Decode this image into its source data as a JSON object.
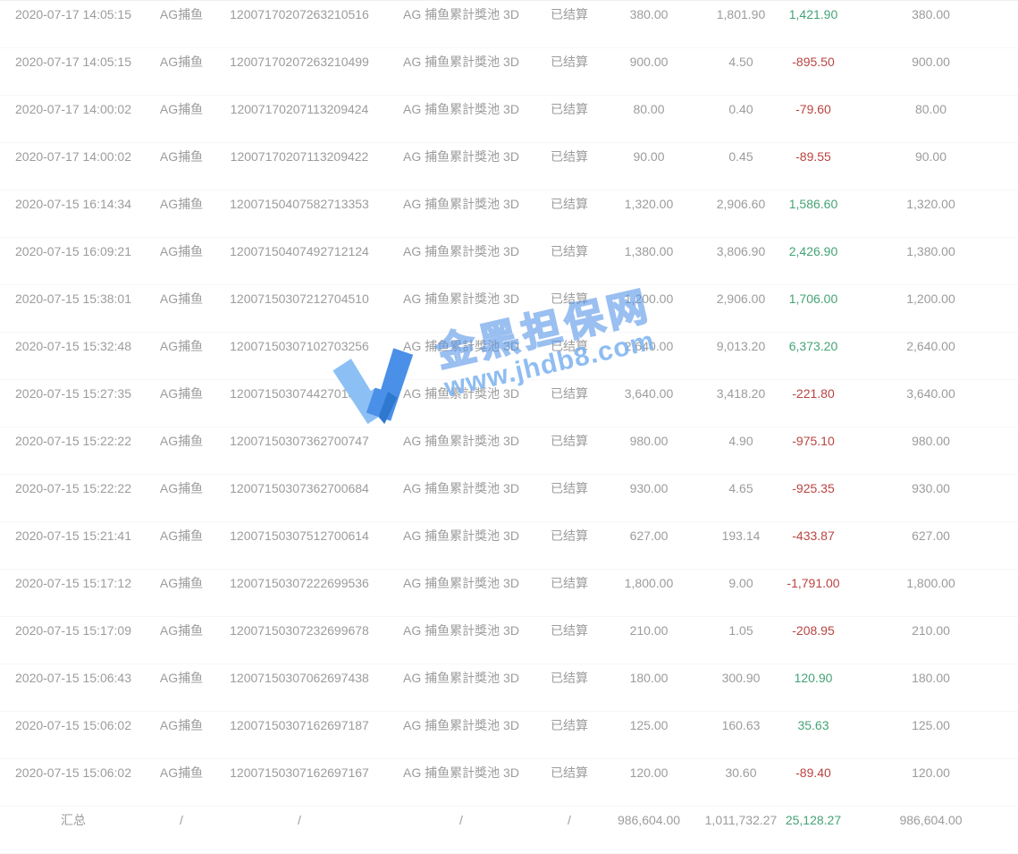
{
  "table": {
    "column_keys": [
      "time",
      "platform",
      "order-no",
      "game-name",
      "status",
      "bet-amount",
      "payout",
      "win-loss",
      "valid-bet"
    ],
    "rows": [
      [
        "2020-07-17 14:05:15",
        "AG捕鱼",
        "12007170207263210516",
        "AG 捕鱼累計獎池 3D",
        "已结算",
        "380.00",
        "1,801.90",
        "1,421.90",
        "380.00"
      ],
      [
        "2020-07-17 14:05:15",
        "AG捕鱼",
        "12007170207263210499",
        "AG 捕鱼累計獎池 3D",
        "已结算",
        "900.00",
        "4.50",
        "-895.50",
        "900.00"
      ],
      [
        "2020-07-17 14:00:02",
        "AG捕鱼",
        "12007170207113209424",
        "AG 捕鱼累計獎池 3D",
        "已结算",
        "80.00",
        "0.40",
        "-79.60",
        "80.00"
      ],
      [
        "2020-07-17 14:00:02",
        "AG捕鱼",
        "12007170207113209422",
        "AG 捕鱼累計獎池 3D",
        "已结算",
        "90.00",
        "0.45",
        "-89.55",
        "90.00"
      ],
      [
        "2020-07-15 16:14:34",
        "AG捕鱼",
        "12007150407582713353",
        "AG 捕鱼累計獎池 3D",
        "已结算",
        "1,320.00",
        "2,906.60",
        "1,586.60",
        "1,320.00"
      ],
      [
        "2020-07-15 16:09:21",
        "AG捕鱼",
        "12007150407492712124",
        "AG 捕鱼累計獎池 3D",
        "已结算",
        "1,380.00",
        "3,806.90",
        "2,426.90",
        "1,380.00"
      ],
      [
        "2020-07-15 15:38:01",
        "AG捕鱼",
        "12007150307212704510",
        "AG 捕鱼累計獎池 3D",
        "已结算",
        "1,200.00",
        "2,906.00",
        "1,706.00",
        "1,200.00"
      ],
      [
        "2020-07-15 15:32:48",
        "AG捕鱼",
        "12007150307102703256",
        "AG 捕鱼累計獎池 3D",
        "已结算",
        "2,640.00",
        "9,013.20",
        "6,373.20",
        "2,640.00"
      ],
      [
        "2020-07-15 15:27:35",
        "AG捕鱼",
        "12007150307442701895",
        "AG 捕鱼累計獎池 3D",
        "已结算",
        "3,640.00",
        "3,418.20",
        "-221.80",
        "3,640.00"
      ],
      [
        "2020-07-15 15:22:22",
        "AG捕鱼",
        "12007150307362700747",
        "AG 捕鱼累計獎池 3D",
        "已结算",
        "980.00",
        "4.90",
        "-975.10",
        "980.00"
      ],
      [
        "2020-07-15 15:22:22",
        "AG捕鱼",
        "12007150307362700684",
        "AG 捕鱼累計獎池 3D",
        "已结算",
        "930.00",
        "4.65",
        "-925.35",
        "930.00"
      ],
      [
        "2020-07-15 15:21:41",
        "AG捕鱼",
        "12007150307512700614",
        "AG 捕鱼累計獎池 3D",
        "已结算",
        "627.00",
        "193.14",
        "-433.87",
        "627.00"
      ],
      [
        "2020-07-15 15:17:12",
        "AG捕鱼",
        "12007150307222699536",
        "AG 捕鱼累計獎池 3D",
        "已结算",
        "1,800.00",
        "9.00",
        "-1,791.00",
        "1,800.00"
      ],
      [
        "2020-07-15 15:17:09",
        "AG捕鱼",
        "12007150307232699678",
        "AG 捕鱼累計獎池 3D",
        "已结算",
        "210.00",
        "1.05",
        "-208.95",
        "210.00"
      ],
      [
        "2020-07-15 15:06:43",
        "AG捕鱼",
        "12007150307062697438",
        "AG 捕鱼累計獎池 3D",
        "已结算",
        "180.00",
        "300.90",
        "120.90",
        "180.00"
      ],
      [
        "2020-07-15 15:06:02",
        "AG捕鱼",
        "12007150307162697187",
        "AG 捕鱼累計獎池 3D",
        "已结算",
        "125.00",
        "160.63",
        "35.63",
        "125.00"
      ],
      [
        "2020-07-15 15:06:02",
        "AG捕鱼",
        "12007150307162697167",
        "AG 捕鱼累計獎池 3D",
        "已结算",
        "120.00",
        "30.60",
        "-89.40",
        "120.00"
      ]
    ],
    "summary": [
      "汇总",
      "/",
      "/",
      "/",
      "/",
      "986,604.00",
      "1,011,732.27",
      "25,128.27",
      "986,604.00"
    ]
  },
  "watermark": {
    "brand": "金黑担保网",
    "url": "www.jhdb8.com"
  },
  "colors": {
    "positive": "#45a377",
    "negative": "#b94442",
    "text_gray": "#9c9c9c",
    "watermark_blue": "#5694e8"
  }
}
